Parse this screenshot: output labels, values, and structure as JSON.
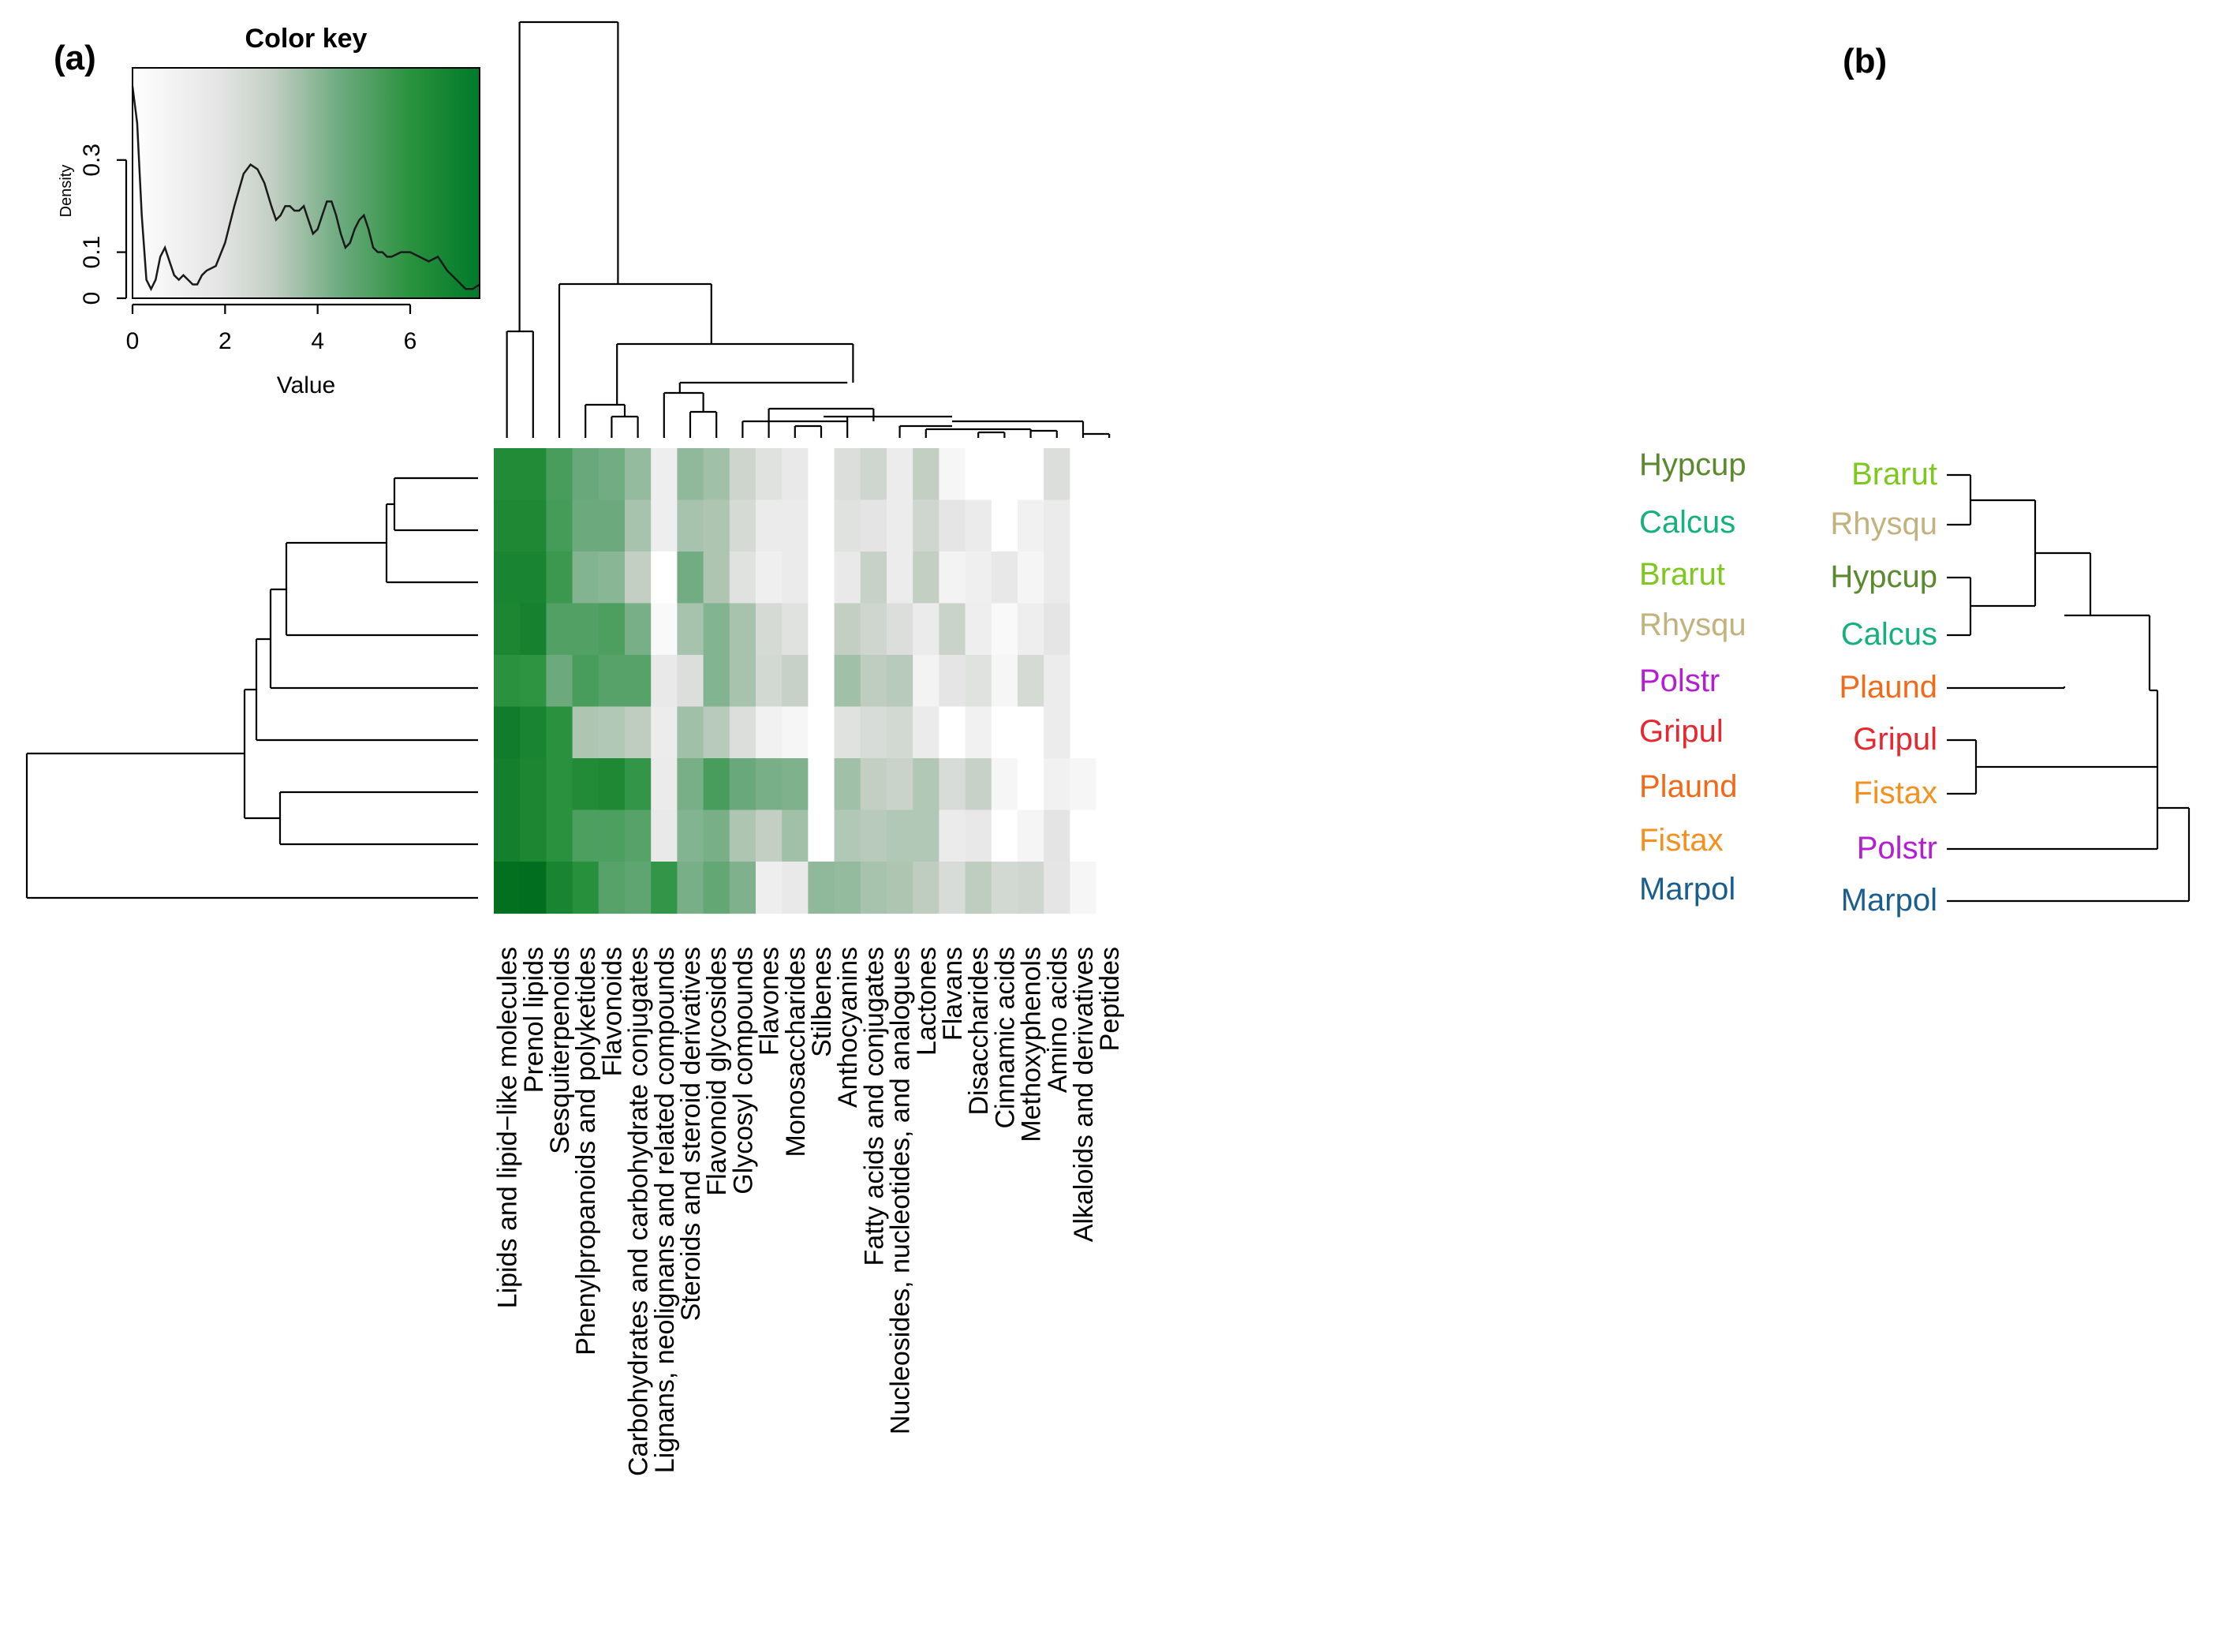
{
  "chart_data": {
    "type": "heatmap",
    "panel_labels": [
      "(a)",
      "(b)"
    ],
    "color_key": {
      "title": "Color key",
      "xlabel": "Value",
      "ylabel": "Density",
      "xlim": [
        0,
        7.5
      ],
      "ylim": [
        0,
        0.5
      ],
      "x_ticks": [
        "0",
        "2",
        "4",
        "6"
      ],
      "y_ticks": [
        "0",
        "0.1",
        "0.3"
      ],
      "low_color": "#ffffff",
      "high_color": "#007a2a",
      "density_curve": [
        [
          0,
          0.46
        ],
        [
          0.1,
          0.38
        ],
        [
          0.2,
          0.18
        ],
        [
          0.3,
          0.04
        ],
        [
          0.4,
          0.02
        ],
        [
          0.5,
          0.04
        ],
        [
          0.6,
          0.09
        ],
        [
          0.7,
          0.11
        ],
        [
          0.8,
          0.08
        ],
        [
          0.9,
          0.05
        ],
        [
          1.0,
          0.04
        ],
        [
          1.1,
          0.05
        ],
        [
          1.2,
          0.04
        ],
        [
          1.3,
          0.03
        ],
        [
          1.4,
          0.03
        ],
        [
          1.5,
          0.05
        ],
        [
          1.6,
          0.06
        ],
        [
          1.8,
          0.07
        ],
        [
          2.0,
          0.12
        ],
        [
          2.2,
          0.2
        ],
        [
          2.4,
          0.27
        ],
        [
          2.55,
          0.29
        ],
        [
          2.7,
          0.28
        ],
        [
          2.85,
          0.25
        ],
        [
          3.0,
          0.2
        ],
        [
          3.1,
          0.17
        ],
        [
          3.2,
          0.18
        ],
        [
          3.3,
          0.2
        ],
        [
          3.4,
          0.2
        ],
        [
          3.5,
          0.19
        ],
        [
          3.6,
          0.19
        ],
        [
          3.7,
          0.2
        ],
        [
          3.8,
          0.17
        ],
        [
          3.9,
          0.14
        ],
        [
          4.0,
          0.15
        ],
        [
          4.1,
          0.18
        ],
        [
          4.2,
          0.21
        ],
        [
          4.3,
          0.21
        ],
        [
          4.4,
          0.18
        ],
        [
          4.5,
          0.14
        ],
        [
          4.6,
          0.11
        ],
        [
          4.7,
          0.12
        ],
        [
          4.8,
          0.15
        ],
        [
          4.9,
          0.17
        ],
        [
          5.0,
          0.18
        ],
        [
          5.1,
          0.15
        ],
        [
          5.2,
          0.11
        ],
        [
          5.3,
          0.1
        ],
        [
          5.4,
          0.1
        ],
        [
          5.5,
          0.09
        ],
        [
          5.6,
          0.09
        ],
        [
          5.8,
          0.1
        ],
        [
          6.0,
          0.1
        ],
        [
          6.2,
          0.09
        ],
        [
          6.4,
          0.08
        ],
        [
          6.6,
          0.09
        ],
        [
          6.8,
          0.06
        ],
        [
          7.0,
          0.04
        ],
        [
          7.2,
          0.02
        ],
        [
          7.35,
          0.02
        ],
        [
          7.5,
          0.03
        ]
      ]
    },
    "columns": [
      "Lipids and lipid−like molecules",
      "Prenol lipids",
      "Sesquiterpenoids",
      "Phenylpropanoids and polyketides",
      "Flavonoids",
      "Carbohydrates and carbohydrate conjugates",
      "Lignans, neolignans and related compounds",
      "Steroids and steroid derivatives",
      "Flavonoid glycosides",
      "Glycosyl compounds",
      "Flavones",
      "Monosaccharides",
      "Stilbenes",
      "Anthocyanins",
      "Fatty acids and conjugates",
      "Nucleosides, nucleotides, and analogues",
      "Lactones",
      "Flavans",
      "Disaccharides",
      "Cinnamic acids",
      "Methoxyphenols",
      "Amino acids",
      "Alkaloids and derivatives",
      "Peptides"
    ],
    "rows": [
      {
        "name": "Hypcup",
        "color": "#5b8a2e"
      },
      {
        "name": "Calcus",
        "color": "#16b07e"
      },
      {
        "name": "Brarut",
        "color": "#7ec81e"
      },
      {
        "name": "Rhysqu",
        "color": "#c2b27e"
      },
      {
        "name": "Polstr",
        "color": "#b41ed2"
      },
      {
        "name": "Gripul",
        "color": "#e8262e"
      },
      {
        "name": "Plaund",
        "color": "#f06a1a"
      },
      {
        "name": "Fistax",
        "color": "#f5901e"
      },
      {
        "name": "Marpol",
        "color": "#1a5e8e"
      }
    ],
    "values": [
      [
        6.3,
        6.3,
        5.3,
        4.6,
        4.4,
        3.8,
        1.2,
        3.9,
        3.6,
        2.7,
        2.0,
        1.5,
        0,
        2.2,
        2.6,
        1.3,
        3.0,
        0.6,
        0,
        0,
        0,
        2.2,
        0,
        0
      ],
      [
        6.4,
        6.4,
        5.4,
        4.5,
        4.5,
        3.5,
        1.2,
        3.5,
        3.4,
        2.4,
        1.4,
        1.4,
        0,
        2.0,
        1.9,
        1.3,
        2.6,
        1.8,
        1.4,
        0,
        1.0,
        1.4,
        0,
        0
      ],
      [
        6.6,
        6.6,
        5.6,
        4.1,
        4.0,
        3.0,
        0,
        4.4,
        3.4,
        2.0,
        1.1,
        1.4,
        0,
        1.5,
        2.9,
        1.3,
        3.0,
        0.8,
        1.1,
        1.6,
        0.7,
        1.4,
        0,
        0
      ],
      [
        6.5,
        6.7,
        5.1,
        5.1,
        5.2,
        4.3,
        0.4,
        3.5,
        4.1,
        3.5,
        2.4,
        2.0,
        0,
        3.0,
        2.6,
        2.2,
        1.4,
        2.8,
        1.2,
        0.4,
        1.2,
        1.8,
        0,
        0
      ],
      [
        6.0,
        5.9,
        4.5,
        5.3,
        5.0,
        5.0,
        1.5,
        2.2,
        4.1,
        3.5,
        2.5,
        2.9,
        0,
        3.6,
        3.1,
        3.2,
        0.8,
        1.8,
        2.0,
        0.6,
        2.4,
        1.3,
        0,
        0
      ],
      [
        6.9,
        6.6,
        6.0,
        3.4,
        3.3,
        3.1,
        1.3,
        3.6,
        3.2,
        2.2,
        1.0,
        0.6,
        0,
        2.0,
        2.3,
        2.5,
        1.4,
        0,
        1.0,
        0,
        0,
        1.3,
        0,
        0
      ],
      [
        6.8,
        6.5,
        6.0,
        6.3,
        6.4,
        5.8,
        1.4,
        4.3,
        5.3,
        4.6,
        4.3,
        4.2,
        0,
        3.6,
        3.0,
        2.8,
        3.3,
        2.3,
        2.9,
        0.6,
        0,
        1.0,
        0.6,
        0
      ],
      [
        6.8,
        6.5,
        6.0,
        5.2,
        5.2,
        5.0,
        1.5,
        4.1,
        4.3,
        3.4,
        3.0,
        3.6,
        0,
        3.3,
        3.2,
        3.3,
        3.3,
        1.4,
        1.6,
        0,
        0.7,
        1.9,
        0,
        0
      ],
      [
        7.4,
        7.5,
        6.6,
        6.1,
        5.0,
        4.8,
        5.8,
        4.3,
        4.7,
        4.2,
        1.2,
        1.5,
        3.9,
        3.8,
        3.5,
        3.4,
        3.1,
        2.3,
        3.1,
        2.5,
        2.6,
        1.8,
        0.6,
        0
      ]
    ],
    "right_dendrogram_labels": [
      {
        "name": "Brarut",
        "color": "#7ec81e"
      },
      {
        "name": "Rhysqu",
        "color": "#c2b27e"
      },
      {
        "name": "Hypcup",
        "color": "#5b8a2e"
      },
      {
        "name": "Calcus",
        "color": "#16b07e"
      },
      {
        "name": "Plaund",
        "color": "#f06a1a"
      },
      {
        "name": "Gripul",
        "color": "#e8262e"
      },
      {
        "name": "Fistax",
        "color": "#f5901e"
      },
      {
        "name": "Polstr",
        "color": "#b41ed2"
      },
      {
        "name": "Marpol",
        "color": "#1a5e8e"
      }
    ]
  }
}
